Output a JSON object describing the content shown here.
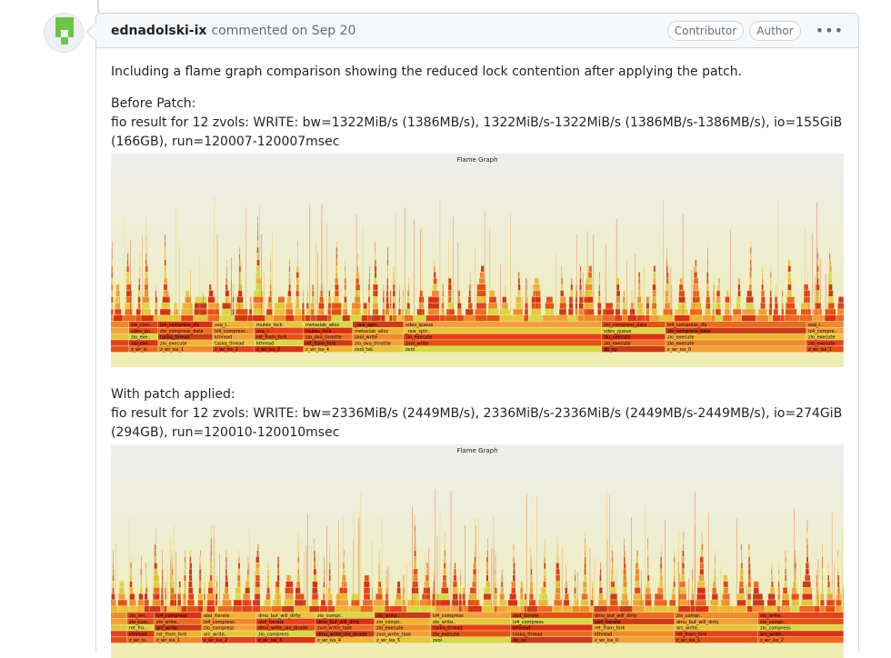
{
  "comment": {
    "author": "ednadolski-ix",
    "action_date": "commented on Sep 20",
    "badges": [
      "Contributor",
      "Author"
    ],
    "menu_label": "•••",
    "intro": "Including a flame graph comparison showing the reduced lock contention after applying the patch.",
    "before_heading": "Before Patch:",
    "before_result": "fio result for 12 zvols: WRITE: bw=1322MiB/s (1386MB/s), 1322MiB/s-1322MiB/s (1386MB/s-1386MB/s), io=155GiB (166GB), run=120007-120007msec",
    "after_heading": "With patch applied:",
    "after_result": "fio result for 12 zvols: WRITE: bw=2336MiB/s (2449MB/s), 2336MiB/s-2336MiB/s (2449MB/s-2449MB/s), io=274GiB (294GB), run=120010-120010msec"
  },
  "flamegraphs": [
    {
      "title": "Flame Graph",
      "bottom_labels": [
        "dp_sy..",
        "z_wr_iss_0",
        "z_wr_iss_1",
        "z_wr_iss_2",
        "z_wr_iss_3",
        "z_wr_iss_4",
        "zvol_tsk",
        "zvol"
      ],
      "mid_labels": [
        "zio_execute",
        "zio_execute",
        "zio_execute",
        "zio_execute",
        "taskq_thread",
        "kthread",
        "ret_from_fork",
        "zio_dva_throttle",
        "zvol_write"
      ],
      "upper_labels": [
        "osq_l..",
        "mutex_lock",
        "metaslab_alloc",
        "_raw_spin..",
        "vdev_queue",
        "zio_compress_data",
        "lz4_compress_zfs"
      ]
    },
    {
      "title": "Flame Graph",
      "bottom_labels": [
        "dp_sy..",
        "z_wr_iss_0",
        "z_wr_iss_1",
        "z_wr_iss_2",
        "z_wr_iss_3",
        "z_wr_iss_4",
        "z_wr_iss_5",
        "zvol"
      ],
      "mid_labels": [
        "zio_execute",
        "taskq_thread",
        "kthread",
        "ret_from_fork",
        "arc_write..",
        "zio_compress",
        "dmu_write_uio_dnode",
        "zvol_write_task"
      ],
      "upper_labels": [
        "zio_write..",
        "lz4_compress",
        "abd_iterate",
        "dmu_buf_will_dirty",
        "zio_compr.."
      ]
    }
  ],
  "colors": {
    "header_bg": "#f6f8fa",
    "border": "#d0d7de",
    "muted": "#656d76",
    "flame_palette": [
      "#e35212",
      "#ee6a22",
      "#f08a2a",
      "#e8401e",
      "#dd2f14",
      "#f0b431",
      "#e7c63b",
      "#d8d845",
      "#cc3a18",
      "#f3a03a"
    ]
  },
  "avatar_icon": "identicon-green"
}
